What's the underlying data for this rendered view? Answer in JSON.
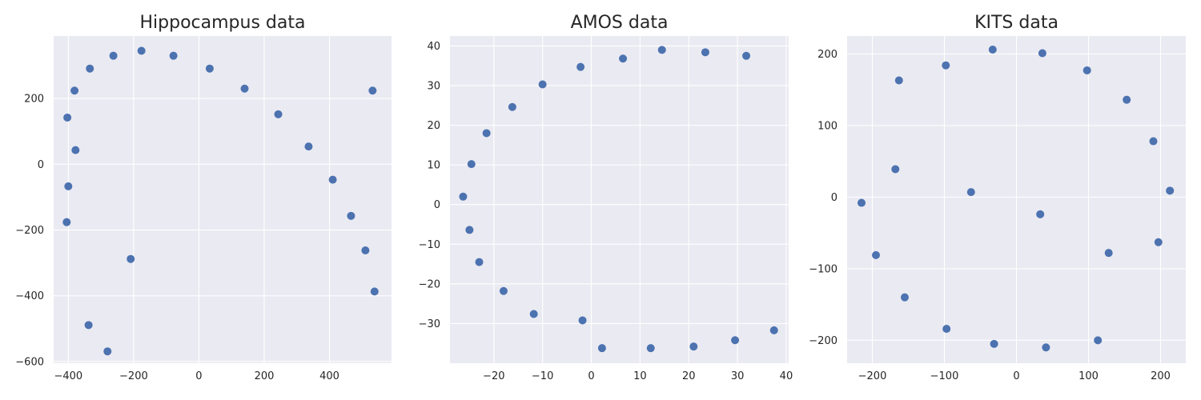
{
  "colors": {
    "background": "#eaeaf2",
    "grid": "#ffffff",
    "point": "#4c72b0",
    "text": "#262626"
  },
  "chart_data": [
    {
      "type": "scatter",
      "title": "Hippocampus data",
      "xlabel": "",
      "ylabel": "",
      "grid": true,
      "xlim": [
        -445,
        590
      ],
      "ylim": [
        -605,
        390
      ],
      "xticks": [
        -400,
        -200,
        0,
        200,
        400
      ],
      "xtick_labels": [
        "−400",
        "−200",
        "0",
        "200",
        "400"
      ],
      "yticks": [
        -600,
        -400,
        -200,
        0,
        200
      ],
      "ytick_labels": [
        "−600",
        "−400",
        "−200",
        "0",
        "200"
      ],
      "x": [
        -405,
        -400,
        -378,
        -403,
        -381,
        -334,
        -262,
        -176,
        -78,
        33,
        140,
        243,
        336,
        410,
        466,
        510,
        532,
        538,
        -338,
        -280,
        -209
      ],
      "y": [
        -176,
        -67,
        43,
        142,
        224,
        291,
        330,
        345,
        330,
        291,
        230,
        152,
        54,
        -47,
        -157,
        -262,
        224,
        -387,
        -489,
        -569,
        -288
      ]
    },
    {
      "type": "scatter",
      "title": "AMOS data",
      "xlabel": "",
      "ylabel": "",
      "grid": true,
      "xlim": [
        -29,
        40.5
      ],
      "ylim": [
        -40,
        42.5
      ],
      "xticks": [
        -20,
        -10,
        0,
        10,
        20,
        30,
        40
      ],
      "xtick_labels": [
        "−20",
        "−10",
        "0",
        "10",
        "20",
        "30",
        "40"
      ],
      "yticks": [
        -30,
        -20,
        -10,
        0,
        10,
        20,
        30,
        40
      ],
      "ytick_labels": [
        "−30",
        "−20",
        "−10",
        "0",
        "10",
        "20",
        "30",
        "40"
      ],
      "x": [
        -26.3,
        -24.6,
        -21.5,
        -16.2,
        -10,
        -2.2,
        6.5,
        14.5,
        23.4,
        31.8,
        -25,
        -23,
        -18,
        -11.8,
        -1.8,
        2.2,
        12.2,
        21,
        29.5,
        37.5
      ],
      "y": [
        2,
        10.2,
        18,
        24.6,
        30.3,
        34.7,
        36.8,
        39,
        38.4,
        37.5,
        -6.4,
        -14.5,
        -21.8,
        -27.6,
        -29.2,
        -36.2,
        -36.2,
        -35.8,
        -34.2,
        -31.7
      ]
    },
    {
      "type": "scatter",
      "title": "KITS data",
      "xlabel": "",
      "ylabel": "",
      "grid": true,
      "xlim": [
        -235,
        235
      ],
      "ylim": [
        -232,
        225
      ],
      "xticks": [
        -200,
        -100,
        0,
        100,
        200
      ],
      "xtick_labels": [
        "−200",
        "−100",
        "0",
        "100",
        "200"
      ],
      "yticks": [
        -200,
        -100,
        0,
        100,
        200
      ],
      "ytick_labels": [
        "−200",
        "−100",
        "0",
        "100",
        "200"
      ],
      "x": [
        -215,
        -195,
        -168,
        -163,
        -155,
        -98,
        -97,
        -63,
        -33,
        -31,
        33,
        36,
        41,
        98,
        113,
        128,
        153,
        190,
        197,
        213
      ],
      "y": [
        -8,
        -81,
        39,
        163,
        -140,
        184,
        -184,
        7,
        206,
        -205,
        -24,
        201,
        -210,
        177,
        -200,
        -78,
        136,
        78,
        -63,
        9
      ]
    }
  ]
}
